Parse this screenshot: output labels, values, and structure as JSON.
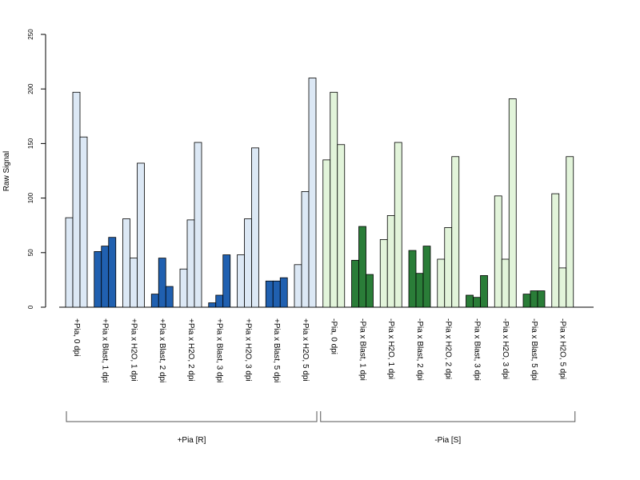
{
  "chart_data": {
    "type": "bar",
    "ylabel": "Raw Signal",
    "xlabel": "",
    "ylim": [
      0,
      250
    ],
    "yticks": [
      0,
      50,
      100,
      150,
      200,
      250
    ],
    "grid": false,
    "categories": [
      {
        "label": "+Pia, 0 dpi",
        "values": [
          82,
          197,
          156
        ],
        "color": "#dce8f5"
      },
      {
        "label": "+Pia x Blast, 1 dpi",
        "values": [
          51,
          56,
          64
        ],
        "color": "#2060b0"
      },
      {
        "label": "+Pia x H2O, 1 dpi",
        "values": [
          81,
          45,
          132
        ],
        "color": "#dce8f5"
      },
      {
        "label": "+Pia x Blast, 2 dpi",
        "values": [
          12,
          45,
          19
        ],
        "color": "#2060b0"
      },
      {
        "label": "+Pia x H2O, 2 dpi",
        "values": [
          35,
          80,
          151
        ],
        "color": "#dce8f5"
      },
      {
        "label": "+Pia x Blast, 3 dpi",
        "values": [
          4,
          11,
          48
        ],
        "color": "#2060b0"
      },
      {
        "label": "+Pia x H2O, 3 dpi",
        "values": [
          48,
          81,
          146
        ],
        "color": "#dce8f5"
      },
      {
        "label": "+Pia x Blast, 5 dpi",
        "values": [
          24,
          24,
          27
        ],
        "color": "#2060b0"
      },
      {
        "label": "+Pia x H2O, 5 dpi",
        "values": [
          39,
          106,
          210
        ],
        "color": "#dce8f5"
      },
      {
        "label": "-Pia, 0 dpi",
        "values": [
          135,
          197,
          149
        ],
        "color": "#e2f4da"
      },
      {
        "label": "-Pia x Blast, 1 dpi",
        "values": [
          43,
          74,
          30
        ],
        "color": "#2a7d38"
      },
      {
        "label": "-Pia x H2O, 1 dpi",
        "values": [
          62,
          84,
          151
        ],
        "color": "#e2f4da"
      },
      {
        "label": "-Pia x Blast, 2 dpi",
        "values": [
          52,
          31,
          56
        ],
        "color": "#2a7d38"
      },
      {
        "label": "-Pia x H2O, 2 dpi",
        "values": [
          44,
          73,
          138
        ],
        "color": "#e2f4da"
      },
      {
        "label": "-Pia x Blast, 3 dpi",
        "values": [
          11,
          9,
          29
        ],
        "color": "#2a7d38"
      },
      {
        "label": "-Pia x H2O, 3 dpi",
        "values": [
          102,
          44,
          191
        ],
        "color": "#e2f4da"
      },
      {
        "label": "-Pia x Blast, 5 dpi",
        "values": [
          12,
          15,
          15
        ],
        "color": "#2a7d38"
      },
      {
        "label": "-Pia x H2O, 5 dpi",
        "values": [
          104,
          36,
          138
        ],
        "color": "#e2f4da"
      }
    ],
    "groups": [
      {
        "label": "+Pia [R]",
        "first_category": 0,
        "last_category": 8
      },
      {
        "label": "-Pia [S]",
        "first_category": 9,
        "last_category": 17
      }
    ]
  }
}
